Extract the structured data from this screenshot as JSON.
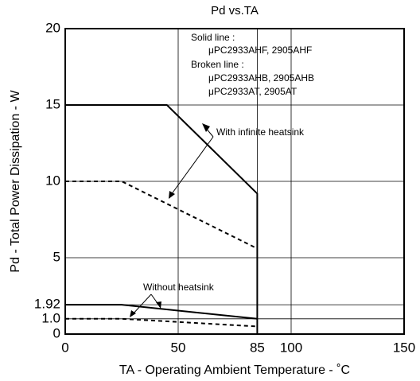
{
  "chart_data": {
    "type": "line",
    "title": "Pd vs.TA",
    "x_label": "TA - Operating Ambient Temperature - ˚C",
    "y_label": "Pd - Total Power Dissipation - W",
    "xlim": [
      0,
      150
    ],
    "xticks": [
      0,
      50,
      85,
      100,
      150
    ],
    "ylim": [
      0,
      20
    ],
    "yticks": [
      0,
      {
        "value": 1,
        "label": "1.0"
      },
      1.92,
      5,
      10,
      15,
      20
    ],
    "grid": true,
    "series": [
      {
        "color": "#000000",
        "dashed": false,
        "x": [
          0,
          45,
          85,
          85
        ],
        "values": [
          15,
          15,
          9.2,
          0
        ]
      },
      {
        "color": "#000000",
        "dashed": true,
        "x": [
          0,
          25,
          85
        ],
        "values": [
          10,
          10,
          5.6
        ]
      },
      {
        "color": "#000000",
        "dashed": false,
        "x": [
          0,
          25,
          85
        ],
        "values": [
          1.92,
          1.92,
          1.0
        ]
      },
      {
        "color": "#000000",
        "dashed": true,
        "x": [
          0,
          25,
          85
        ],
        "values": [
          1.0,
          1.0,
          0.5
        ]
      }
    ],
    "legend_notes": [
      "Solid line :",
      "μPC2933AHF, 2905AHF",
      "Broken line :",
      "μPC2933AHB, 2905AHB",
      "μPC2933AT, 2905AT"
    ],
    "annotations": [
      "With infinite heatsink",
      "Without heatsink"
    ]
  }
}
